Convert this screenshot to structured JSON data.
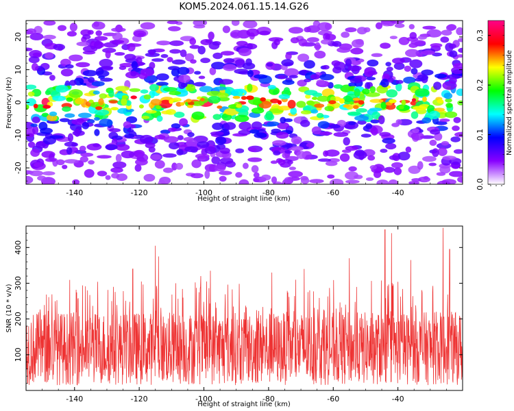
{
  "title": "KOM5.2024.061.15.14.G26",
  "chart_data": [
    {
      "type": "heatmap",
      "xlabel": "Height of straight line (km)",
      "ylabel": "Frequency (Hz)",
      "xlim": [
        -155,
        -20
      ],
      "ylim": [
        -25,
        25
      ],
      "xticks": [
        -140,
        -120,
        -100,
        -80,
        -60,
        -40
      ],
      "yticks": [
        -20,
        -10,
        0,
        10,
        20
      ],
      "band_center_hz": 0,
      "band_halfwidth_hz": 5,
      "colorbar": {
        "label": "Normalized spectral amplitude",
        "range": [
          0.0,
          0.33
        ],
        "ticks": [
          0.0,
          0.1,
          0.2,
          0.3
        ],
        "colors": [
          "#ffffff",
          "#8800ff",
          "#0000ff",
          "#00ffff",
          "#00ff00",
          "#ffff00",
          "#ff0000",
          "#ff0088"
        ]
      }
    },
    {
      "type": "line",
      "xlabel": "Height of straight line (km)",
      "ylabel": "SNR (10 * v/v)",
      "xlim": [
        -155,
        -20
      ],
      "ylim": [
        0,
        460
      ],
      "xticks": [
        -140,
        -120,
        -100,
        -80,
        -60,
        -40
      ],
      "yticks": [
        100,
        200,
        300,
        400
      ],
      "color": "#ee3333",
      "typical_range": [
        50,
        220
      ],
      "peaks": [
        {
          "x": -146,
          "y": 250
        },
        {
          "x": -136,
          "y": 280
        },
        {
          "x": -128,
          "y": 290
        },
        {
          "x": -122,
          "y": 340
        },
        {
          "x": -115,
          "y": 405
        },
        {
          "x": -114,
          "y": 375
        },
        {
          "x": -101,
          "y": 320
        },
        {
          "x": -98,
          "y": 335
        },
        {
          "x": -79,
          "y": 330
        },
        {
          "x": -69,
          "y": 340
        },
        {
          "x": -55,
          "y": 370
        },
        {
          "x": -44,
          "y": 450
        },
        {
          "x": -42,
          "y": 440
        },
        {
          "x": -36,
          "y": 365
        },
        {
          "x": -26,
          "y": 455
        },
        {
          "x": -24,
          "y": 395
        }
      ]
    }
  ]
}
